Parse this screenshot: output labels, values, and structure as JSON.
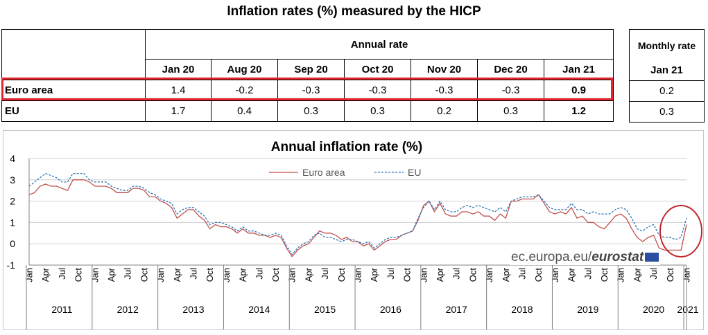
{
  "table": {
    "title": "Inflation rates (%) measured by the HICP",
    "annual_header": "Annual rate",
    "monthly_header": "Monthly rate",
    "months": [
      "Jan 20",
      "Aug 20",
      "Sep 20",
      "Oct 20",
      "Nov 20",
      "Dec 20",
      "Jan 21"
    ],
    "monthly_month": "Jan 21",
    "rows": [
      {
        "label": "Euro area",
        "annual": [
          "1.4",
          "-0.2",
          "-0.3",
          "-0.3",
          "-0.3",
          "-0.3",
          "0.9"
        ],
        "monthly": "0.2",
        "highlighted": true
      },
      {
        "label": "EU",
        "annual": [
          "1.7",
          "0.4",
          "0.3",
          "0.3",
          "0.2",
          "0.3",
          "1.2"
        ],
        "monthly": "0.3",
        "highlighted": false
      }
    ],
    "highlight_color": "#e3262d"
  },
  "chart_data": {
    "type": "line",
    "title": "Annual  inflation rate (%)",
    "xlabel": "",
    "ylabel": "",
    "ylim": [
      -1,
      4
    ],
    "yticks": [
      "-1",
      "0",
      "1",
      "2",
      "3",
      "4"
    ],
    "month_ticks": [
      "Jan",
      "Apr",
      "Jul",
      "Oct"
    ],
    "year_labels": [
      "2011",
      "2012",
      "2013",
      "2014",
      "2015",
      "2016",
      "2017",
      "2018",
      "2019",
      "2020",
      "2021"
    ],
    "grid": true,
    "legend_placement": "top-center",
    "watermark_text": "ec.europa.eu/",
    "watermark_bold": "eurostat",
    "series": [
      {
        "name": "Euro area",
        "color": "#c0504d",
        "style": "solid",
        "values": [
          2.3,
          2.4,
          2.7,
          2.8,
          2.7,
          2.7,
          2.6,
          2.5,
          3.0,
          3.0,
          3.0,
          2.9,
          2.7,
          2.7,
          2.7,
          2.6,
          2.4,
          2.4,
          2.4,
          2.6,
          2.6,
          2.5,
          2.2,
          2.2,
          2.0,
          1.9,
          1.7,
          1.2,
          1.4,
          1.6,
          1.6,
          1.3,
          1.1,
          0.7,
          0.9,
          0.8,
          0.8,
          0.7,
          0.5,
          0.7,
          0.5,
          0.5,
          0.4,
          0.4,
          0.3,
          0.4,
          0.3,
          -0.2,
          -0.6,
          -0.3,
          -0.1,
          0.0,
          0.3,
          0.6,
          0.5,
          0.5,
          0.4,
          0.2,
          0.3,
          0.1,
          0.1,
          -0.1,
          0.0,
          -0.3,
          -0.1,
          0.1,
          0.2,
          0.2,
          0.4,
          0.5,
          0.6,
          1.1,
          1.8,
          2.0,
          1.5,
          1.9,
          1.4,
          1.3,
          1.3,
          1.5,
          1.5,
          1.4,
          1.5,
          1.3,
          1.3,
          1.1,
          1.4,
          1.2,
          2.0,
          2.0,
          2.1,
          2.1,
          2.1,
          2.3,
          1.9,
          1.5,
          1.4,
          1.5,
          1.4,
          1.7,
          1.2,
          1.3,
          1.0,
          1.0,
          0.8,
          0.7,
          1.0,
          1.3,
          1.4,
          1.2,
          0.7,
          0.3,
          0.1,
          0.3,
          0.4,
          -0.2,
          -0.3,
          -0.3,
          -0.3,
          -0.3,
          0.9
        ]
      },
      {
        "name": "EU",
        "color": "#2e75b6",
        "style": "dashed",
        "values": [
          2.7,
          2.9,
          3.1,
          3.3,
          3.2,
          3.1,
          2.9,
          2.9,
          3.3,
          3.3,
          3.3,
          3.0,
          2.9,
          2.9,
          2.9,
          2.7,
          2.6,
          2.5,
          2.5,
          2.7,
          2.7,
          2.6,
          2.4,
          2.3,
          2.1,
          2.0,
          1.9,
          1.4,
          1.6,
          1.7,
          1.7,
          1.5,
          1.3,
          0.9,
          1.0,
          1.0,
          0.9,
          0.8,
          0.6,
          0.8,
          0.6,
          0.6,
          0.5,
          0.4,
          0.4,
          0.5,
          0.4,
          -0.1,
          -0.5,
          -0.2,
          0.0,
          0.1,
          0.4,
          0.5,
          0.3,
          0.3,
          0.2,
          0.1,
          0.2,
          0.2,
          0.1,
          0.0,
          0.1,
          -0.2,
          0.0,
          0.2,
          0.3,
          0.3,
          0.4,
          0.5,
          0.6,
          1.2,
          1.7,
          2.0,
          1.6,
          2.0,
          1.6,
          1.5,
          1.5,
          1.7,
          1.8,
          1.7,
          1.8,
          1.7,
          1.6,
          1.5,
          1.7,
          1.5,
          2.0,
          2.1,
          2.2,
          2.2,
          2.2,
          2.3,
          2.0,
          1.7,
          1.6,
          1.6,
          1.6,
          1.9,
          1.6,
          1.6,
          1.4,
          1.5,
          1.4,
          1.4,
          1.4,
          1.6,
          1.7,
          1.6,
          1.2,
          0.7,
          0.6,
          0.8,
          0.9,
          0.4,
          0.3,
          0.3,
          0.2,
          0.3,
          1.2
        ]
      }
    ]
  }
}
